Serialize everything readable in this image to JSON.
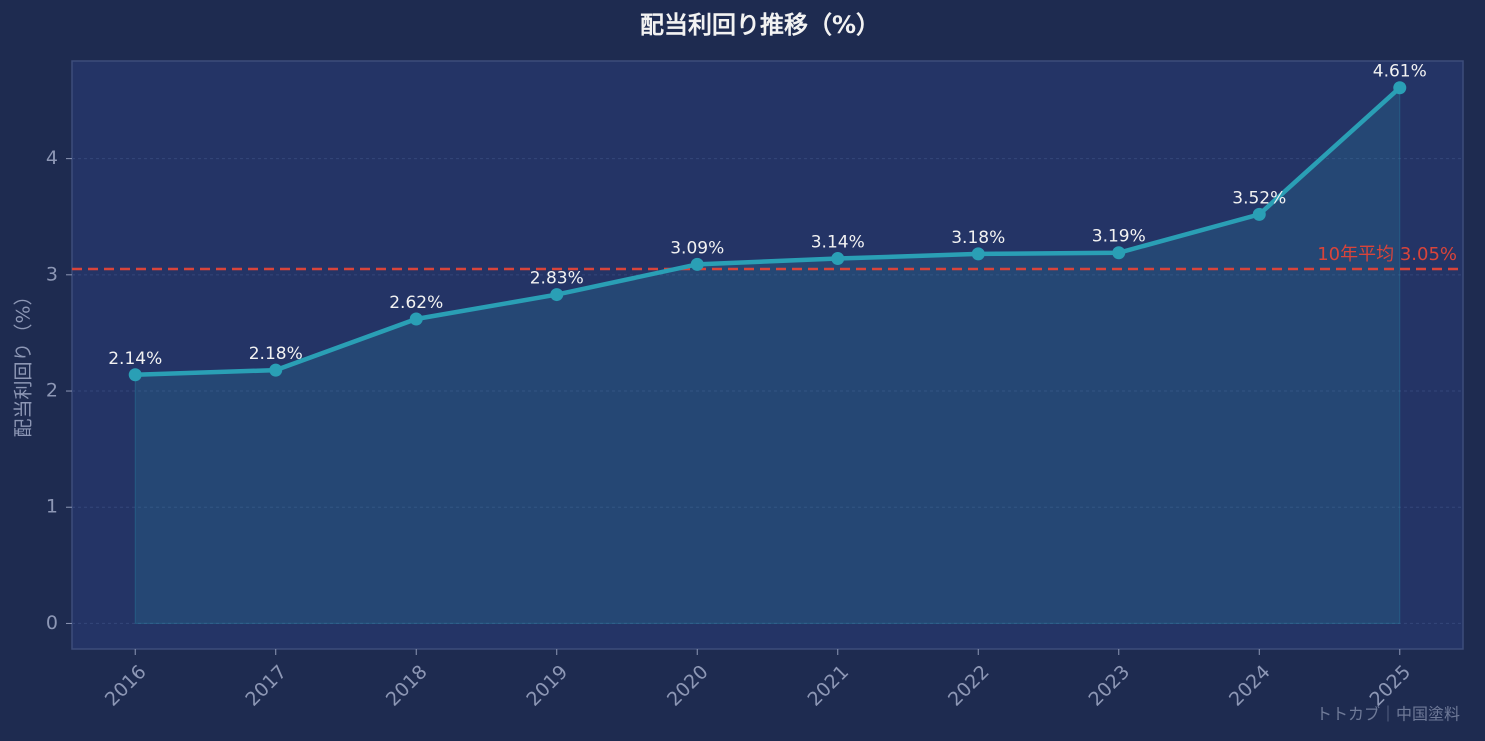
{
  "chart_data": {
    "type": "line",
    "title": "配当利回り推移（%）",
    "y_label": "配当利回り（%）",
    "categories": [
      "2016",
      "2017",
      "2018",
      "2019",
      "2020",
      "2021",
      "2022",
      "2023",
      "2024",
      "2025"
    ],
    "values": [
      2.14,
      2.18,
      2.62,
      2.83,
      3.09,
      3.14,
      3.18,
      3.19,
      3.52,
      4.61
    ],
    "value_labels": [
      "2.14%",
      "2.18%",
      "2.62%",
      "2.83%",
      "3.09%",
      "3.14%",
      "3.18%",
      "3.19%",
      "3.52%",
      "4.61%"
    ],
    "color": "#2a9fb5",
    "ylim": [
      -0.22,
      4.84
    ],
    "yticks": [
      0,
      1,
      2,
      3,
      4
    ],
    "grid": true,
    "average": {
      "value": 3.05,
      "label": "10年平均 3.05%",
      "color": "#d9443a"
    },
    "watermark": "トトカブ｜中国塗料"
  }
}
